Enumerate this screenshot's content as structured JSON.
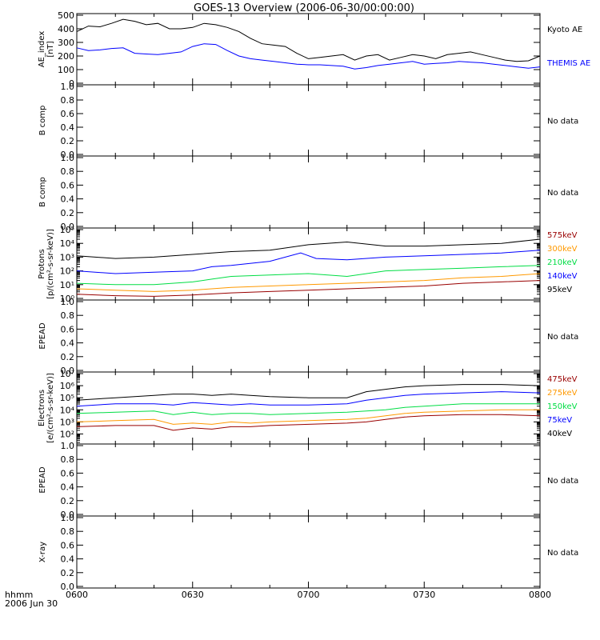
{
  "title": "GOES-13 Overview (2006-06-30/00:00:00)",
  "footer": {
    "label_time": "hhmm",
    "label_date": "2006 Jun 30"
  },
  "x_ticks": [
    "0600",
    "0630",
    "0700",
    "0730",
    "0800"
  ],
  "no_data_text": "No data",
  "colors": {
    "black": "#000000",
    "blue": "#0000ff",
    "green": "#00dd44",
    "orange": "#ff9900",
    "darkred": "#990000"
  },
  "chart_data": [
    {
      "type": "line",
      "ylabel": [
        "AE_index",
        "[nT]"
      ],
      "ylim": [
        0,
        500
      ],
      "yticks": [
        "0",
        "100",
        "200",
        "300",
        "400",
        "500"
      ],
      "x_minutes_range": [
        0,
        120
      ],
      "legend": [
        {
          "label": "Kyoto AE",
          "color": "#000000"
        },
        {
          "label": "THEMIS AE",
          "color": "#0000ff"
        }
      ],
      "series": [
        {
          "name": "Kyoto AE",
          "color": "#000000",
          "x": [
            0,
            3,
            6,
            9,
            12,
            15,
            18,
            21,
            24,
            27,
            30,
            33,
            36,
            39,
            42,
            45,
            48,
            51,
            54,
            57,
            60,
            63,
            66,
            69,
            72,
            75,
            78,
            81,
            84,
            87,
            90,
            93,
            96,
            99,
            102,
            105,
            108,
            111,
            114,
            117,
            120
          ],
          "y": [
            380,
            420,
            415,
            440,
            470,
            455,
            430,
            440,
            400,
            400,
            410,
            440,
            430,
            410,
            380,
            330,
            290,
            280,
            270,
            220,
            180,
            190,
            200,
            210,
            170,
            200,
            210,
            170,
            190,
            210,
            200,
            180,
            210,
            220,
            230,
            210,
            190,
            170,
            160,
            165,
            200
          ]
        },
        {
          "name": "THEMIS AE",
          "color": "#0000ff",
          "x": [
            0,
            3,
            6,
            9,
            12,
            15,
            18,
            21,
            24,
            27,
            30,
            33,
            36,
            39,
            42,
            45,
            48,
            51,
            54,
            57,
            60,
            63,
            66,
            69,
            72,
            75,
            78,
            81,
            84,
            87,
            90,
            93,
            96,
            99,
            102,
            105,
            108,
            111,
            114,
            117,
            120
          ],
          "y": [
            260,
            240,
            245,
            255,
            260,
            220,
            215,
            210,
            220,
            230,
            270,
            290,
            285,
            240,
            200,
            180,
            170,
            160,
            150,
            140,
            135,
            135,
            130,
            125,
            105,
            115,
            130,
            140,
            150,
            160,
            140,
            145,
            150,
            160,
            155,
            150,
            140,
            130,
            120,
            110,
            120
          ]
        }
      ]
    },
    {
      "type": "line",
      "ylabel": [
        "B comp"
      ],
      "ylim": [
        0,
        1
      ],
      "yticks": [
        "0.0",
        "0.2",
        "0.4",
        "0.6",
        "0.8",
        "1.0"
      ],
      "no_data": true
    },
    {
      "type": "line",
      "ylabel": [
        "B comp"
      ],
      "ylim": [
        0,
        1
      ],
      "yticks": [
        "0.0",
        "0.2",
        "0.4",
        "0.6",
        "0.8",
        "1.0"
      ],
      "no_data": true
    },
    {
      "type": "line",
      "ylabel": [
        "Protons",
        "[p/(cm²-s-sr-keV)]"
      ],
      "log": true,
      "ylim_log10": [
        0,
        5
      ],
      "yticks": [
        "10⁰",
        "10¹",
        "10²",
        "10³",
        "10⁴",
        "10⁵"
      ],
      "legend": [
        {
          "label": "575keV",
          "color": "#990000"
        },
        {
          "label": "300keV",
          "color": "#ff9900"
        },
        {
          "label": "210keV",
          "color": "#00dd44"
        },
        {
          "label": "140keV",
          "color": "#0000ff"
        },
        {
          "label": "95keV",
          "color": "#000000"
        }
      ],
      "series": [
        {
          "name": "95keV",
          "color": "#000000",
          "x": [
            0,
            10,
            20,
            30,
            40,
            50,
            60,
            70,
            80,
            90,
            100,
            110,
            120
          ],
          "log10_y": [
            3.1,
            2.9,
            3.0,
            3.2,
            3.4,
            3.5,
            3.9,
            4.1,
            3.8,
            3.8,
            3.9,
            4.0,
            4.3
          ]
        },
        {
          "name": "140keV",
          "color": "#0000ff",
          "x": [
            0,
            10,
            20,
            30,
            35,
            40,
            50,
            58,
            62,
            70,
            80,
            90,
            100,
            110,
            120
          ],
          "log10_y": [
            2.0,
            1.8,
            1.9,
            2.0,
            2.3,
            2.4,
            2.7,
            3.3,
            2.9,
            2.8,
            3.0,
            3.1,
            3.2,
            3.3,
            3.5
          ]
        },
        {
          "name": "210keV",
          "color": "#00dd44",
          "x": [
            0,
            10,
            20,
            30,
            35,
            40,
            50,
            60,
            70,
            80,
            90,
            100,
            110,
            120
          ],
          "log10_y": [
            1.1,
            1.0,
            1.0,
            1.2,
            1.4,
            1.6,
            1.7,
            1.8,
            1.6,
            2.0,
            2.1,
            2.2,
            2.3,
            2.4
          ]
        },
        {
          "name": "300keV",
          "color": "#ff9900",
          "x": [
            0,
            10,
            20,
            30,
            40,
            50,
            60,
            70,
            80,
            90,
            100,
            110,
            120
          ],
          "log10_y": [
            0.7,
            0.6,
            0.5,
            0.6,
            0.8,
            0.9,
            1.0,
            1.1,
            1.2,
            1.3,
            1.5,
            1.6,
            1.8
          ]
        },
        {
          "name": "575keV",
          "color": "#990000",
          "x": [
            0,
            10,
            20,
            30,
            40,
            50,
            60,
            70,
            80,
            90,
            100,
            110,
            120
          ],
          "log10_y": [
            0.3,
            0.2,
            0.15,
            0.25,
            0.4,
            0.5,
            0.6,
            0.7,
            0.8,
            0.9,
            1.1,
            1.2,
            1.3
          ]
        }
      ]
    },
    {
      "type": "line",
      "ylabel": [
        "EPEAD"
      ],
      "ylim": [
        0,
        1
      ],
      "yticks": [
        "0.0",
        "0.2",
        "0.4",
        "0.6",
        "0.8",
        "1.0"
      ],
      "no_data": true
    },
    {
      "type": "line",
      "ylabel": [
        "Electrons",
        "[e/(cm²-s-sr-keV)]"
      ],
      "log": true,
      "ylim_log10": [
        1.3,
        7
      ],
      "yticks": [
        "10²",
        "10³",
        "10⁴",
        "10⁵",
        "10⁶",
        "10⁷"
      ],
      "ytick_values_log10": [
        2,
        3,
        4,
        5,
        6,
        7
      ],
      "legend": [
        {
          "label": "475keV",
          "color": "#990000"
        },
        {
          "label": "275keV",
          "color": "#ff9900"
        },
        {
          "label": "150keV",
          "color": "#00dd44"
        },
        {
          "label": "75keV",
          "color": "#0000ff"
        },
        {
          "label": "40keV",
          "color": "#000000"
        }
      ],
      "series": [
        {
          "name": "40keV",
          "color": "#000000",
          "x": [
            0,
            10,
            20,
            25,
            30,
            35,
            40,
            45,
            50,
            60,
            70,
            75,
            80,
            85,
            90,
            100,
            110,
            120
          ],
          "log10_y": [
            4.8,
            5.0,
            5.2,
            5.3,
            5.3,
            5.2,
            5.3,
            5.2,
            5.1,
            5.0,
            5.0,
            5.5,
            5.7,
            5.9,
            6.0,
            6.1,
            6.1,
            6.0
          ]
        },
        {
          "name": "75keV",
          "color": "#0000ff",
          "x": [
            0,
            10,
            20,
            25,
            30,
            35,
            40,
            45,
            50,
            60,
            70,
            75,
            80,
            85,
            90,
            100,
            110,
            120
          ],
          "log10_y": [
            4.3,
            4.5,
            4.5,
            4.4,
            4.6,
            4.5,
            4.4,
            4.5,
            4.4,
            4.4,
            4.5,
            4.8,
            5.0,
            5.2,
            5.3,
            5.4,
            5.5,
            5.4
          ]
        },
        {
          "name": "150keV",
          "color": "#00dd44",
          "x": [
            0,
            10,
            20,
            25,
            30,
            35,
            40,
            45,
            50,
            60,
            70,
            75,
            80,
            85,
            90,
            100,
            110,
            120
          ],
          "log10_y": [
            3.7,
            3.8,
            3.9,
            3.6,
            3.8,
            3.6,
            3.7,
            3.7,
            3.6,
            3.7,
            3.8,
            3.9,
            4.0,
            4.2,
            4.3,
            4.5,
            4.5,
            4.5
          ]
        },
        {
          "name": "275keV",
          "color": "#ff9900",
          "x": [
            0,
            10,
            20,
            25,
            30,
            35,
            40,
            45,
            50,
            60,
            70,
            75,
            80,
            85,
            90,
            100,
            110,
            120
          ],
          "log10_y": [
            3.0,
            3.1,
            3.2,
            2.8,
            2.9,
            2.8,
            3.0,
            2.9,
            3.0,
            3.1,
            3.2,
            3.3,
            3.5,
            3.7,
            3.8,
            3.9,
            4.0,
            4.0
          ]
        },
        {
          "name": "475keV",
          "color": "#990000",
          "x": [
            0,
            10,
            20,
            25,
            30,
            35,
            40,
            45,
            50,
            60,
            70,
            75,
            80,
            85,
            90,
            100,
            110,
            120
          ],
          "log10_y": [
            2.6,
            2.7,
            2.7,
            2.3,
            2.5,
            2.4,
            2.6,
            2.6,
            2.7,
            2.8,
            2.9,
            3.0,
            3.2,
            3.4,
            3.5,
            3.6,
            3.6,
            3.5
          ]
        }
      ]
    },
    {
      "type": "line",
      "ylabel": [
        "EPEAD"
      ],
      "ylim": [
        0,
        1
      ],
      "yticks": [
        "0.0",
        "0.2",
        "0.4",
        "0.6",
        "0.8",
        "1.0"
      ],
      "no_data": true
    },
    {
      "type": "line",
      "ylabel": [
        "X-ray"
      ],
      "ylim": [
        0,
        1
      ],
      "yticks": [
        "0.0",
        "0.2",
        "0.4",
        "0.6",
        "0.8",
        "1.0"
      ],
      "no_data": true
    }
  ]
}
